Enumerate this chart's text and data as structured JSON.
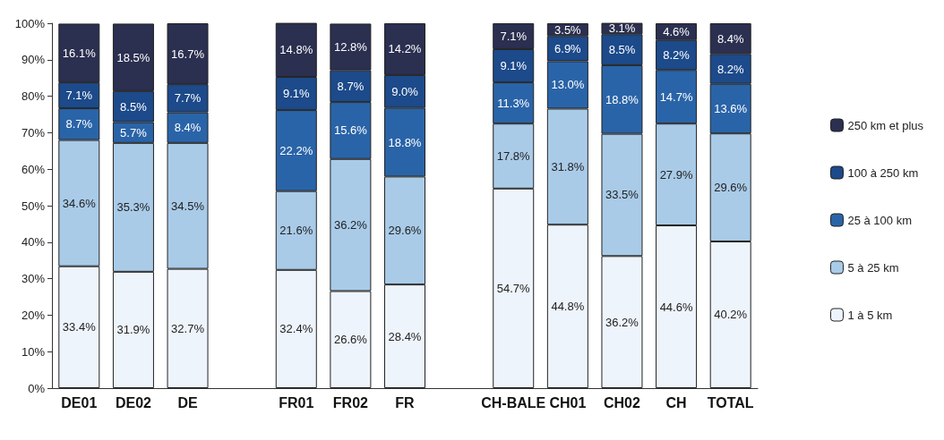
{
  "chart_data": {
    "type": "bar",
    "stacked": true,
    "categories": [
      "DE01",
      "DE02",
      "DE",
      null,
      "FR01",
      "FR02",
      "FR",
      null,
      "CH-BALE",
      "CH01",
      "CH02",
      "CH",
      "TOTAL"
    ],
    "series": [
      {
        "name": "1 à 5 km",
        "color": "#eef4fb",
        "values": [
          33.4,
          31.9,
          32.7,
          null,
          32.4,
          26.6,
          28.4,
          null,
          54.7,
          44.8,
          36.2,
          44.6,
          40.2
        ],
        "value_labels": [
          "33.4%",
          "31.9%",
          "32.7%",
          null,
          "32.4%",
          "26.6%",
          "28.4%",
          null,
          "54.7%",
          "44.8%",
          "36.2%",
          "44.6%",
          "40.2%"
        ]
      },
      {
        "name": "5 à 25 km",
        "color": "#a9cbe8",
        "values": [
          34.6,
          35.3,
          34.5,
          null,
          21.6,
          36.2,
          29.6,
          null,
          17.8,
          31.8,
          33.5,
          27.9,
          29.6
        ],
        "value_labels": [
          "34.6%",
          "35.3%",
          "34.5%",
          null,
          "21.6%",
          "36.2%",
          "29.6%",
          null,
          "17.8%",
          "31.8%",
          "33.5%",
          "27.9%",
          "29.6%"
        ]
      },
      {
        "name": "25 à 100 km",
        "color": "#2a64a8",
        "values": [
          8.7,
          5.7,
          8.4,
          null,
          22.2,
          15.6,
          18.8,
          null,
          11.3,
          13.0,
          18.8,
          14.7,
          13.6
        ],
        "value_labels": [
          "8.7%",
          "5.7%",
          "8.4%",
          null,
          "22.2%",
          "15.6%",
          "18.8%",
          null,
          "11.3%",
          "13.0%",
          "18.8%",
          "14.7%",
          "13.6%"
        ]
      },
      {
        "name": "100 à 250 km",
        "color": "#1c4a8a",
        "values": [
          7.1,
          8.5,
          7.7,
          null,
          9.1,
          8.7,
          9.0,
          null,
          9.1,
          6.9,
          8.5,
          8.2,
          8.2
        ],
        "value_labels": [
          "7.1%",
          "8.5%",
          "7.7%",
          null,
          "9.1%",
          "8.7%",
          "9.0%",
          null,
          "9.1%",
          "6.9%",
          "8.5%",
          "8.2%",
          "8.2%"
        ]
      },
      {
        "name": "250 km et plus",
        "color": "#2b2f50",
        "values": [
          16.1,
          18.5,
          16.7,
          null,
          14.8,
          12.8,
          14.2,
          null,
          7.1,
          3.5,
          3.1,
          4.6,
          8.4
        ],
        "value_labels": [
          "16.1%",
          "18.5%",
          "16.7%",
          null,
          "14.8%",
          "12.8%",
          "14.2%",
          null,
          "7.1%",
          "3.5%",
          "3.1%",
          "4.6%",
          "8.4%"
        ]
      }
    ],
    "ylim": [
      0,
      100
    ],
    "yticks": [
      {
        "value": 0,
        "label": "0%"
      },
      {
        "value": 10,
        "label": "10%"
      },
      {
        "value": 20,
        "label": "20%"
      },
      {
        "value": 30,
        "label": "30%"
      },
      {
        "value": 40,
        "label": "40%"
      },
      {
        "value": 50,
        "label": "50%"
      },
      {
        "value": 60,
        "label": "60%"
      },
      {
        "value": 70,
        "label": "70%"
      },
      {
        "value": 80,
        "label": "80%"
      },
      {
        "value": 90,
        "label": "90%"
      },
      {
        "value": 100,
        "label": "100%"
      }
    ],
    "grid": false,
    "legend": "right"
  }
}
